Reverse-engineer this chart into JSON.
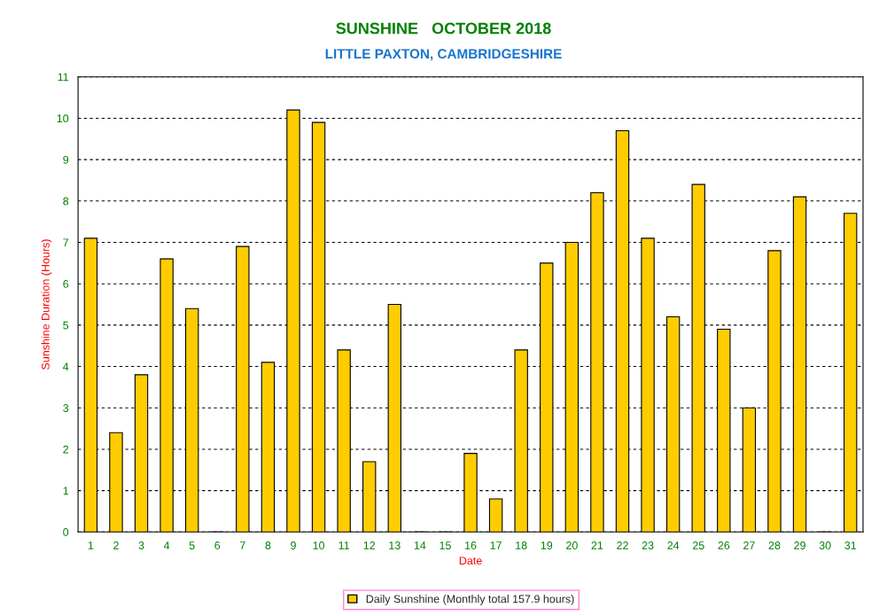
{
  "chart_data": {
    "type": "bar",
    "title": "SUNSHINE   OCTOBER 2018",
    "subtitle": "LITTLE PAXTON, CAMBRIDGESHIRE",
    "xlabel": "Date",
    "ylabel": "Sunshine Duration (Hours)",
    "categories": [
      "1",
      "2",
      "3",
      "4",
      "5",
      "6",
      "7",
      "8",
      "9",
      "10",
      "11",
      "12",
      "13",
      "14",
      "15",
      "16",
      "17",
      "18",
      "19",
      "20",
      "21",
      "22",
      "23",
      "24",
      "25",
      "26",
      "27",
      "28",
      "29",
      "30",
      "31"
    ],
    "series": [
      {
        "name": "Daily Sunshine (Monthly total 157.9 hours)",
        "color": "#ffcc00",
        "values": [
          7.1,
          2.4,
          3.8,
          6.6,
          5.4,
          0,
          6.9,
          4.1,
          10.2,
          9.9,
          4.4,
          1.7,
          5.5,
          0,
          0,
          1.9,
          0.8,
          4.4,
          6.5,
          7.0,
          8.2,
          9.7,
          7.1,
          5.2,
          8.4,
          4.9,
          3.0,
          6.8,
          8.1,
          0,
          7.7
        ]
      }
    ],
    "ylim": [
      0,
      11
    ],
    "yticks": [
      0,
      1,
      2,
      3,
      4,
      5,
      6,
      7,
      8,
      9,
      10,
      11
    ],
    "grid": "y",
    "legend": "bottom"
  }
}
